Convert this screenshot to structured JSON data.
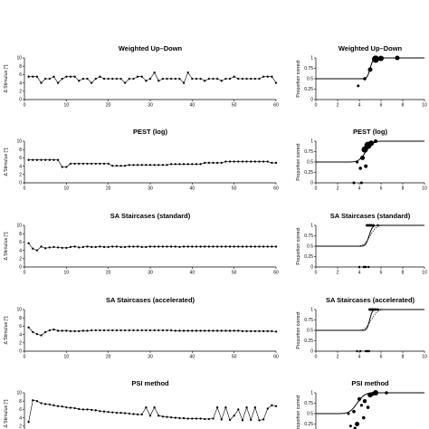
{
  "chart_data": [
    {
      "id": "r0-left",
      "type": "line",
      "title": "",
      "ylabel": "Δ Stimulus [°]",
      "ylim": [
        0,
        10
      ],
      "xlim": [
        0,
        60
      ],
      "yticks": [
        4
      ],
      "xticks": [
        0,
        10,
        20,
        30,
        40,
        50,
        60
      ],
      "x": [
        1,
        2,
        3,
        4,
        5,
        6,
        7,
        8,
        9,
        10,
        11,
        12,
        13,
        14,
        15,
        16,
        17,
        18,
        19,
        20,
        21,
        22,
        23,
        24,
        25,
        26,
        27,
        28,
        29,
        30,
        31,
        32,
        33,
        34,
        35,
        36,
        37,
        38,
        39,
        40,
        41,
        42,
        43,
        44,
        45,
        46,
        47,
        48,
        49,
        50,
        51,
        52,
        53,
        54,
        55,
        56,
        57,
        58,
        59,
        60
      ],
      "y": [
        9.0,
        2.3,
        6.0,
        9.0,
        4.0,
        9.0,
        3.5,
        2.0,
        1.5,
        3.5,
        5.5,
        9.0,
        3.0,
        9.0,
        6.0,
        4.5,
        3.0,
        6.0,
        9.0,
        9.5,
        9.0,
        5.0,
        9.0,
        9.5,
        7.0,
        9.0,
        9.0,
        4.5,
        2.0,
        5.0,
        5.0,
        9.0,
        4.0,
        2.0,
        9.0,
        9.0,
        6.0,
        3.0,
        9.0,
        9.5,
        5.5,
        9.0,
        9.0,
        9.5,
        9.0,
        9.0,
        9.0,
        8.0,
        9.0,
        4.0,
        3.0,
        9.0,
        9.5,
        9.0,
        9.0,
        9.0,
        7.0,
        2.0,
        3.0,
        1.5
      ]
    },
    {
      "id": "r0-right",
      "type": "scatter",
      "title": "",
      "ylabel": "Proportion correct",
      "ylim": [
        0,
        1
      ],
      "xlim": [
        0,
        10
      ],
      "yticks": [
        "0.5",
        "0.25"
      ],
      "xticks": [],
      "points": [
        [
          1,
          0.25
        ],
        [
          2.1,
          0.28
        ],
        [
          4,
          0.28
        ],
        [
          4.8,
          0.28
        ]
      ],
      "point_sizes": [
        3,
        3,
        2.5,
        2.5
      ]
    },
    {
      "id": "r1-left",
      "type": "line",
      "title": "Weighted Up–Down",
      "ylabel": "Δ Stimulus [°]",
      "ylim": [
        0,
        10
      ],
      "xlim": [
        0,
        60
      ],
      "yticks": [
        0,
        2,
        4,
        6,
        8,
        10
      ],
      "xticks": [
        0,
        10,
        20,
        30,
        40,
        50,
        60
      ],
      "x": [
        1,
        2,
        3,
        4,
        5,
        6,
        7,
        8,
        9,
        10,
        11,
        12,
        13,
        14,
        15,
        16,
        17,
        18,
        19,
        20,
        21,
        22,
        23,
        24,
        25,
        26,
        27,
        28,
        29,
        30,
        31,
        32,
        33,
        34,
        35,
        36,
        37,
        38,
        39,
        40,
        41,
        42,
        43,
        44,
        45,
        46,
        47,
        48,
        49,
        50,
        51,
        52,
        53,
        54,
        55,
        56,
        57,
        58,
        59,
        60
      ],
      "y": [
        5.5,
        5.5,
        5.5,
        4.0,
        5.0,
        5.0,
        5.5,
        4.0,
        5.0,
        5.5,
        5.5,
        5.5,
        4.5,
        5.0,
        5.0,
        4.0,
        5.0,
        5.5,
        5.0,
        5.0,
        5.0,
        5.0,
        5.0,
        4.0,
        5.0,
        5.0,
        5.5,
        5.5,
        4.5,
        5.0,
        6.5,
        4.5,
        5.0,
        5.0,
        5.0,
        5.0,
        5.0,
        4.0,
        6.5,
        5.0,
        5.0,
        5.0,
        4.5,
        5.0,
        5.0,
        5.0,
        4.5,
        5.0,
        5.0,
        5.5,
        5.0,
        5.0,
        5.0,
        5.0,
        5.0,
        5.0,
        5.5,
        5.5,
        5.5,
        4.0
      ]
    },
    {
      "id": "r1-right",
      "type": "scatter",
      "title": "Weighted Up–Down",
      "ylabel": "Proportion correct",
      "ylim": [
        0,
        1
      ],
      "xlim": [
        0,
        10
      ],
      "yticks": [
        "0",
        "0.25",
        "0.5",
        "0.75",
        "1"
      ],
      "xticks": [
        "0",
        "2",
        "4",
        "6",
        "8",
        "10"
      ],
      "points": [
        [
          3.9,
          0.33
        ],
        [
          4.5,
          0.5
        ],
        [
          5.0,
          0.72
        ],
        [
          5.5,
          0.97
        ],
        [
          6.0,
          0.99
        ],
        [
          7.5,
          1.0
        ]
      ],
      "point_sizes": [
        1.5,
        1.8,
        2.5,
        4,
        3,
        2.5
      ],
      "curves": [
        {
          "style": "solid",
          "mu": 5.0,
          "sigma": 0.22,
          "gamma": 0.5
        }
      ]
    },
    {
      "id": "r2-left",
      "type": "line",
      "title": "PEST (log)",
      "ylabel": "Δ Stimulus [°]",
      "ylim": [
        0,
        10
      ],
      "xlim": [
        0,
        60
      ],
      "yticks": [
        0,
        2,
        4,
        6,
        8,
        10
      ],
      "xticks": [
        0,
        10,
        20,
        30,
        40,
        50,
        60
      ],
      "x": [
        1,
        2,
        3,
        4,
        5,
        6,
        7,
        8,
        9,
        10,
        11,
        12,
        13,
        14,
        15,
        16,
        17,
        18,
        19,
        20,
        21,
        22,
        23,
        24,
        25,
        26,
        27,
        28,
        29,
        30,
        31,
        32,
        33,
        34,
        35,
        36,
        37,
        38,
        39,
        40,
        41,
        42,
        43,
        44,
        45,
        46,
        47,
        48,
        49,
        50,
        51,
        52,
        53,
        54,
        55,
        56,
        57,
        58,
        59,
        60
      ],
      "y": [
        5.5,
        5.5,
        5.5,
        5.5,
        5.5,
        5.5,
        5.5,
        5.5,
        3.8,
        3.8,
        4.6,
        4.6,
        4.6,
        4.6,
        4.6,
        4.6,
        4.6,
        4.6,
        4.6,
        4.6,
        4.1,
        4.1,
        4.1,
        4.1,
        4.3,
        4.3,
        4.3,
        4.3,
        4.3,
        4.3,
        4.3,
        4.3,
        4.3,
        4.3,
        4.5,
        4.5,
        4.5,
        4.5,
        4.5,
        4.5,
        4.5,
        4.5,
        4.8,
        4.8,
        4.8,
        4.8,
        4.8,
        5.1,
        5.1,
        5.1,
        5.1,
        5.1,
        5.1,
        5.1,
        5.1,
        5.1,
        5.1,
        5.1,
        4.8,
        4.8
      ]
    },
    {
      "id": "r2-right",
      "type": "scatter",
      "title": "PEST (log)",
      "ylabel": "Proportion correct",
      "ylim": [
        0,
        1
      ],
      "xlim": [
        0,
        10
      ],
      "yticks": [
        "0",
        "0.25",
        "0.5",
        "0.75",
        "1"
      ],
      "xticks": [
        "0",
        "2",
        "4",
        "6",
        "8",
        "10"
      ],
      "points": [
        [
          3.5,
          0.0
        ],
        [
          3.8,
          0.5
        ],
        [
          4.1,
          0.35
        ],
        [
          4.3,
          0.6
        ],
        [
          4.5,
          0.8
        ],
        [
          4.6,
          0.4
        ],
        [
          4.8,
          0.9
        ],
        [
          5.1,
          0.95
        ],
        [
          5.5,
          1.0
        ],
        [
          4.2,
          0.0
        ]
      ],
      "point_sizes": [
        1.5,
        1.6,
        1.8,
        2.5,
        3.5,
        2,
        4,
        3,
        2,
        1.5
      ],
      "curves": [
        {
          "style": "solid",
          "mu": 4.6,
          "sigma": 0.5,
          "gamma": 0.5
        }
      ]
    },
    {
      "id": "r3-left",
      "type": "line",
      "title": "SA Staircases (standard)",
      "ylabel": "Δ Stimulus [°]",
      "ylim": [
        0,
        10
      ],
      "xlim": [
        0,
        60
      ],
      "yticks": [
        0,
        2,
        4,
        6,
        8,
        10
      ],
      "xticks": [
        0,
        10,
        20,
        30,
        40,
        50,
        60
      ],
      "x": [
        1,
        2,
        3,
        4,
        5,
        6,
        7,
        8,
        9,
        10,
        11,
        12,
        13,
        14,
        15,
        16,
        17,
        18,
        19,
        20,
        21,
        22,
        23,
        24,
        25,
        26,
        27,
        28,
        29,
        30,
        31,
        32,
        33,
        34,
        35,
        36,
        37,
        38,
        39,
        40,
        41,
        42,
        43,
        44,
        45,
        46,
        47,
        48,
        49,
        50,
        51,
        52,
        53,
        54,
        55,
        56,
        57,
        58,
        59,
        60
      ],
      "y": [
        5.7,
        4.4,
        4.0,
        4.9,
        4.5,
        4.7,
        4.8,
        4.7,
        4.6,
        4.6,
        4.8,
        4.9,
        4.7,
        4.8,
        4.9,
        4.8,
        4.8,
        4.9,
        4.8,
        4.8,
        4.9,
        4.9,
        4.8,
        4.8,
        4.9,
        4.9,
        4.9,
        4.8,
        4.8,
        4.9,
        4.9,
        4.9,
        4.9,
        4.9,
        4.9,
        4.9,
        4.8,
        4.9,
        4.9,
        4.9,
        4.9,
        4.9,
        4.9,
        4.9,
        4.9,
        4.9,
        4.9,
        4.9,
        4.9,
        4.9,
        4.9,
        4.9,
        4.9,
        4.9,
        4.9,
        4.9,
        4.9,
        4.9,
        4.9,
        4.9
      ]
    },
    {
      "id": "r3-right",
      "type": "scatter",
      "title": "SA Staircases (standard)",
      "ylabel": "Proportion correct",
      "ylim": [
        0,
        1
      ],
      "xlim": [
        0,
        10
      ],
      "yticks": [
        "0",
        "0.25",
        "0.5",
        "0.75",
        "1"
      ],
      "xticks": [
        "0",
        "2",
        "4",
        "6",
        "8",
        "10"
      ],
      "points": [
        [
          4.0,
          0.0
        ],
        [
          4.4,
          0.0
        ],
        [
          4.5,
          0.0
        ],
        [
          5.7,
          1.0
        ],
        [
          4.7,
          1.0
        ],
        [
          4.8,
          1.0
        ],
        [
          4.9,
          1.0
        ],
        [
          5.0,
          1.0
        ],
        [
          5.1,
          1.0
        ],
        [
          5.2,
          1.0
        ],
        [
          5.3,
          1.0
        ],
        [
          4.6,
          0.0
        ],
        [
          4.85,
          0.0
        ]
      ],
      "point_sizes": [
        1.2,
        1.2,
        1.2,
        1.2,
        1.4,
        1.4,
        1.4,
        1.4,
        1.4,
        1.4,
        1.4,
        1.2,
        1.2
      ],
      "curves": [
        {
          "style": "solid",
          "mu": 4.9,
          "sigma": 0.25,
          "gamma": 0.5
        },
        {
          "style": "dashed",
          "mu": 5.0,
          "sigma": 0.45,
          "gamma": 0.5
        }
      ]
    },
    {
      "id": "r4-left",
      "type": "line",
      "title": "SA Staircases (accelerated)",
      "ylabel": "Δ Stimulus [°]",
      "ylim": [
        0,
        10
      ],
      "xlim": [
        0,
        60
      ],
      "yticks": [
        0,
        2,
        4,
        6,
        8,
        10
      ],
      "xticks": [
        0,
        10,
        20,
        30,
        40,
        50,
        60
      ],
      "x": [
        1,
        2,
        3,
        4,
        5,
        6,
        7,
        8,
        9,
        10,
        11,
        12,
        13,
        14,
        15,
        16,
        17,
        18,
        19,
        20,
        21,
        22,
        23,
        24,
        25,
        26,
        27,
        28,
        29,
        30,
        31,
        32,
        33,
        34,
        35,
        36,
        37,
        38,
        39,
        40,
        41,
        42,
        43,
        44,
        45,
        46,
        47,
        48,
        49,
        50,
        51,
        52,
        53,
        54,
        55,
        56,
        57,
        58,
        59,
        60
      ],
      "y": [
        5.7,
        4.6,
        4.1,
        3.8,
        4.6,
        5.0,
        5.2,
        4.9,
        4.9,
        4.9,
        4.8,
        4.8,
        4.8,
        4.9,
        4.9,
        5.0,
        5.0,
        5.0,
        5.0,
        5.0,
        5.0,
        5.0,
        5.0,
        5.0,
        5.0,
        5.0,
        5.0,
        5.0,
        5.0,
        5.0,
        5.0,
        5.0,
        5.0,
        5.0,
        5.0,
        4.9,
        4.9,
        4.9,
        4.9,
        4.9,
        4.9,
        4.9,
        4.9,
        4.9,
        4.9,
        4.9,
        4.9,
        4.9,
        4.9,
        4.9,
        4.9,
        4.8,
        4.8,
        4.8,
        4.8,
        4.8,
        4.8,
        4.8,
        4.8,
        4.7
      ]
    },
    {
      "id": "r4-right",
      "type": "scatter",
      "title": "SA Staircases (accelerated)",
      "ylabel": "Proportion correct",
      "ylim": [
        0,
        1
      ],
      "xlim": [
        0,
        10
      ],
      "yticks": [
        "0",
        "0.25",
        "0.5",
        "0.75",
        "1"
      ],
      "xticks": [
        "0",
        "2",
        "4",
        "6",
        "8",
        "10"
      ],
      "points": [
        [
          3.8,
          0.0
        ],
        [
          4.1,
          0.0
        ],
        [
          4.6,
          0.0
        ],
        [
          4.7,
          0.0
        ],
        [
          4.8,
          0.0
        ],
        [
          4.9,
          0.0
        ],
        [
          5.0,
          1.0
        ],
        [
          5.2,
          1.0
        ],
        [
          5.1,
          1.0
        ],
        [
          5.3,
          1.0
        ],
        [
          5.4,
          1.0
        ],
        [
          5.5,
          1.0
        ],
        [
          5.7,
          1.0
        ],
        [
          4.95,
          1.0
        ]
      ],
      "point_sizes": [
        1.2,
        1.2,
        1.2,
        1.2,
        1.2,
        1.2,
        1.4,
        1.4,
        1.4,
        1.4,
        1.4,
        1.4,
        1.4,
        1.4
      ],
      "curves": [
        {
          "style": "solid",
          "mu": 4.95,
          "sigma": 0.2,
          "gamma": 0.5
        },
        {
          "style": "dashed",
          "mu": 5.1,
          "sigma": 0.45,
          "gamma": 0.5
        }
      ]
    },
    {
      "id": "r5-left",
      "type": "line",
      "title": "PSI method",
      "ylabel": "Δ Stimulus [°]",
      "ylim": [
        0,
        10
      ],
      "xlim": [
        0,
        60
      ],
      "yticks": [
        0,
        2,
        4,
        6,
        8,
        10
      ],
      "xticks": [],
      "x": [
        1,
        2,
        3,
        4,
        5,
        6,
        7,
        8,
        9,
        10,
        11,
        12,
        13,
        14,
        15,
        16,
        17,
        18,
        19,
        20,
        21,
        22,
        23,
        24,
        25,
        26,
        27,
        28,
        29,
        30,
        31,
        32,
        33,
        34,
        35,
        36,
        37,
        38,
        39,
        40,
        41,
        42,
        43,
        44,
        45,
        46,
        47,
        48,
        49,
        50,
        51,
        52,
        53,
        54,
        55,
        56,
        57,
        58,
        59,
        60
      ],
      "y": [
        3.0,
        8.2,
        8.0,
        7.5,
        7.3,
        7.2,
        7.0,
        6.8,
        6.7,
        6.5,
        6.4,
        6.3,
        6.1,
        6.0,
        6.0,
        5.9,
        5.8,
        5.6,
        5.5,
        5.4,
        5.3,
        5.2,
        5.2,
        5.1,
        5.0,
        4.9,
        4.8,
        4.8,
        6.5,
        4.5,
        6.5,
        4.5,
        4.3,
        4.2,
        4.1,
        4.0,
        3.9,
        3.9,
        3.8,
        3.8,
        3.8,
        3.8,
        3.7,
        3.7,
        3.8,
        6.5,
        3.6,
        6.5,
        3.5,
        4.5,
        6.0,
        3.4,
        6.5,
        3.5,
        6.5,
        3.4,
        3.6,
        6.2,
        7.0,
        6.8
      ]
    },
    {
      "id": "r5-right",
      "type": "scatter",
      "title": "PSI method",
      "ylabel": "Proportion correct",
      "ylim": [
        0,
        1
      ],
      "xlim": [
        0,
        10
      ],
      "yticks": [
        "0.25",
        "0.5",
        "0.75",
        "1"
      ],
      "xticks": [],
      "points": [
        [
          3.2,
          0.2
        ],
        [
          3.5,
          0.55
        ],
        [
          3.8,
          0.25
        ],
        [
          4.0,
          0.85
        ],
        [
          4.2,
          0.7
        ],
        [
          4.4,
          0.4
        ],
        [
          4.5,
          0.8
        ],
        [
          5.0,
          0.95
        ],
        [
          5.5,
          1.0
        ],
        [
          6.5,
          1.0
        ],
        [
          3.0,
          0.5
        ],
        [
          5.2,
          0.97
        ],
        [
          4.8,
          0.65
        ],
        [
          3.6,
          0.15
        ]
      ],
      "point_sizes": [
        1.5,
        1.8,
        2.5,
        2,
        1.6,
        1.8,
        2.2,
        2.8,
        3,
        1.8,
        1.5,
        2.2,
        1.8,
        1.6
      ],
      "curves": [
        {
          "style": "solid",
          "mu": 3.8,
          "sigma": 0.55,
          "gamma": 0.5
        }
      ]
    }
  ]
}
